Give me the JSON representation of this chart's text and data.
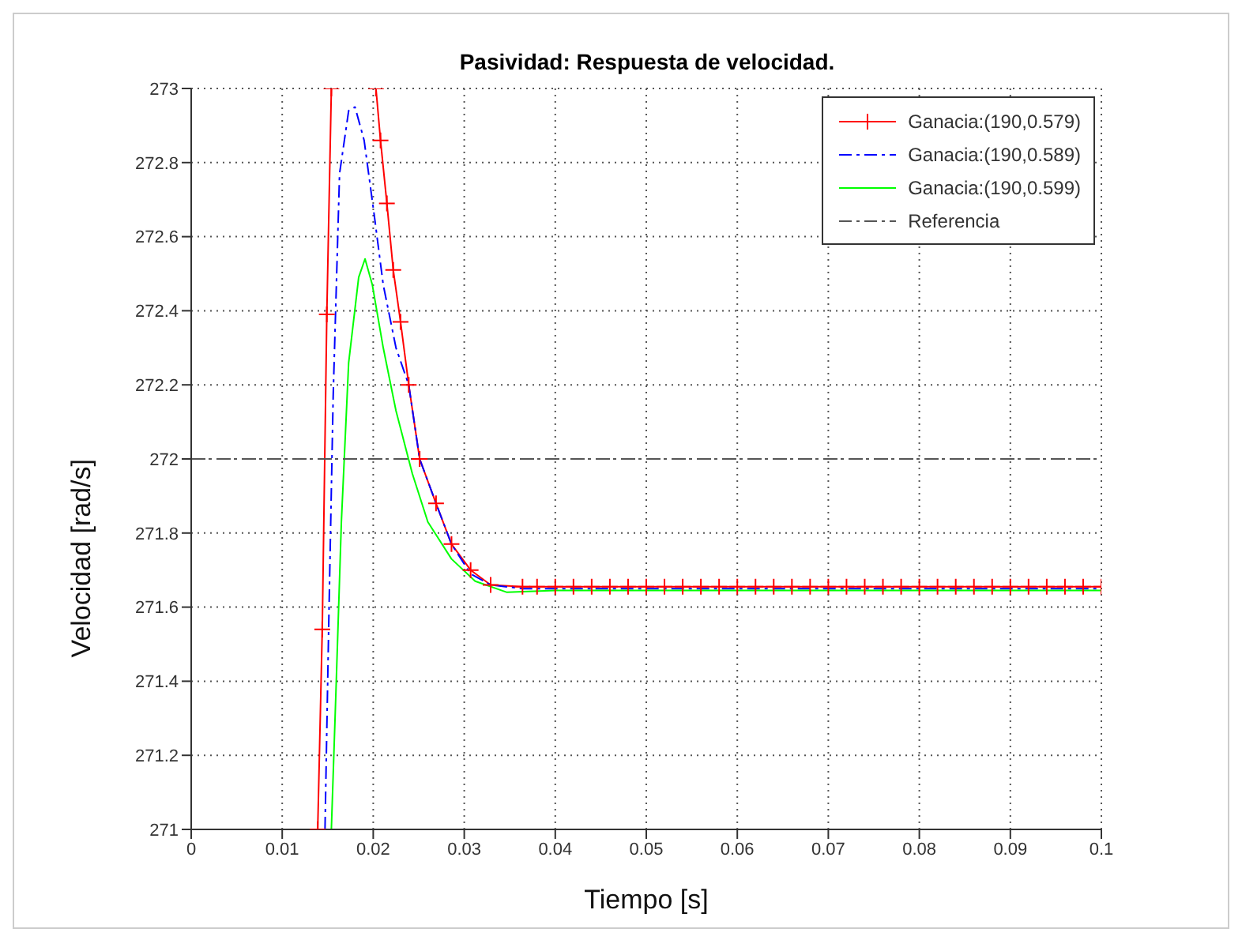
{
  "chart_data": {
    "type": "line",
    "title": "Pasividad: Respuesta de velocidad.",
    "xlabel": "Tiempo [s]",
    "ylabel": "Velocidad [rad/s]",
    "xlim": [
      0,
      0.1
    ],
    "xticks": [
      0,
      0.01,
      0.02,
      0.03,
      0.04,
      0.05,
      0.06,
      0.07,
      0.08,
      0.09,
      0.1
    ],
    "ylim": [
      271,
      273
    ],
    "yticks": [
      271,
      271.2,
      271.4,
      271.6,
      271.8,
      272,
      272.2,
      272.4,
      272.6,
      272.8,
      273
    ],
    "grid": true,
    "legend": "top right",
    "series": [
      {
        "name": "Ganacia:(190,0.579)",
        "color": "#ff0000",
        "marker": "cross",
        "line_style": "solid",
        "x": [
          0.0139,
          0.0144,
          0.0149,
          0.0154,
          0.018,
          0.0203,
          0.0208,
          0.0215,
          0.0222,
          0.023,
          0.0239,
          0.0251,
          0.0269,
          0.0286,
          0.0307,
          0.0329,
          0.0364,
          0.038,
          0.04,
          0.042,
          0.044,
          0.046,
          0.048,
          0.05,
          0.052,
          0.054,
          0.056,
          0.058,
          0.06,
          0.062,
          0.064,
          0.066,
          0.068,
          0.07,
          0.072,
          0.074,
          0.076,
          0.078,
          0.08,
          0.082,
          0.084,
          0.086,
          0.088,
          0.09,
          0.092,
          0.094,
          0.096,
          0.098,
          0.1
        ],
        "values": [
          271,
          271.54,
          272.39,
          273,
          null,
          273,
          272.86,
          272.69,
          272.51,
          272.37,
          272.2,
          272,
          271.88,
          271.77,
          271.7,
          271.66,
          271.655,
          271.655,
          271.655,
          271.655,
          271.655,
          271.655,
          271.655,
          271.655,
          271.655,
          271.655,
          271.655,
          271.655,
          271.655,
          271.655,
          271.655,
          271.655,
          271.655,
          271.655,
          271.655,
          271.655,
          271.655,
          271.655,
          271.655,
          271.655,
          271.655,
          271.655,
          271.655,
          271.655,
          271.655,
          271.655,
          271.655,
          271.655,
          271.655
        ]
      },
      {
        "name": "Ganacia:(190,0.589)",
        "color": "#0000ff",
        "marker": "none",
        "line_style": "dashed",
        "x": [
          0.0147,
          0.0151,
          0.0156,
          0.0163,
          0.0173,
          0.018,
          0.019,
          0.0201,
          0.0211,
          0.0225,
          0.0239,
          0.0251,
          0.0269,
          0.0286,
          0.0307,
          0.0329,
          0.0364,
          0.04,
          0.06,
          0.08,
          0.1
        ],
        "values": [
          271,
          271.54,
          272.17,
          272.77,
          272.94,
          272.95,
          272.86,
          272.66,
          272.47,
          272.3,
          272.2,
          272,
          271.88,
          271.77,
          271.69,
          271.66,
          271.65,
          271.65,
          271.65,
          271.65,
          271.65
        ]
      },
      {
        "name": "Ganacia:(190,0.599)",
        "color": "#00ff00",
        "marker": "none",
        "line_style": "solid",
        "x": [
          0.0154,
          0.0159,
          0.0165,
          0.0173,
          0.0184,
          0.0191,
          0.0199,
          0.0211,
          0.0225,
          0.0243,
          0.026,
          0.0286,
          0.0312,
          0.0347,
          0.04,
          0.06,
          0.08,
          0.1
        ],
        "values": [
          271,
          271.37,
          271.83,
          272.26,
          272.49,
          272.54,
          272.47,
          272.3,
          272.13,
          271.96,
          271.83,
          271.73,
          271.67,
          271.64,
          271.645,
          271.645,
          271.645,
          271.645
        ]
      },
      {
        "name": "Referencia",
        "color": "#555555",
        "marker": "none",
        "line_style": "dashed",
        "x": [
          0,
          0.1
        ],
        "values": [
          272,
          272
        ]
      }
    ]
  }
}
